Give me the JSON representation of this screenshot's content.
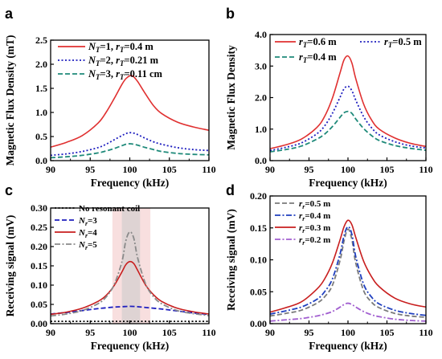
{
  "chart_data": [
    {
      "id": "a",
      "type": "line",
      "panel_label": "a",
      "xlabel": "Frequency (kHz)",
      "ylabel": "Magnetic Flux Density (mT)",
      "xlim": [
        90,
        110
      ],
      "ylim": [
        0,
        2.5
      ],
      "xticks": [
        90,
        95,
        100,
        105,
        110
      ],
      "yticks": [
        0,
        0.5,
        1.0,
        1.5,
        2.0,
        2.5
      ],
      "ytick_labels": [
        "0.0",
        "0.5",
        "1.0",
        "1.5",
        "2.0",
        "2.5"
      ],
      "legend_position": "top-left",
      "grid": false,
      "series": [
        {
          "name": "N_T=1, r_T=0.4 m",
          "label_main": "N",
          "label_sub1": "T",
          "label_mid": "=1, ",
          "label_main2": "r",
          "label_sub2": "T",
          "label_end": "=0.4 m",
          "color": "#e03030",
          "dash": "solid",
          "x": [
            90,
            92,
            94,
            96,
            97,
            98,
            99,
            99.5,
            100,
            100.3,
            100.5,
            101,
            102,
            103,
            104,
            106,
            108,
            110
          ],
          "y": [
            0.28,
            0.38,
            0.52,
            0.78,
            1.0,
            1.28,
            1.58,
            1.7,
            1.76,
            1.76,
            1.74,
            1.64,
            1.38,
            1.14,
            0.98,
            0.8,
            0.7,
            0.63
          ]
        },
        {
          "name": "N_T=2, r_T=0.21 m",
          "label_main": "N",
          "label_sub1": "T",
          "label_mid": "=2, ",
          "label_main2": "r",
          "label_sub2": "T",
          "label_end": "=0.21 m",
          "color": "#1f1fbf",
          "dash": "dot",
          "x": [
            90,
            92,
            94,
            96,
            97,
            98,
            99,
            99.5,
            100,
            100.5,
            101,
            102,
            103,
            104,
            106,
            108,
            110
          ],
          "y": [
            0.11,
            0.14,
            0.19,
            0.27,
            0.34,
            0.43,
            0.52,
            0.56,
            0.58,
            0.57,
            0.54,
            0.46,
            0.39,
            0.34,
            0.27,
            0.23,
            0.21
          ]
        },
        {
          "name": "N_T=3, r_T=0.11 cm",
          "label_main": "N",
          "label_sub1": "T",
          "label_mid": "=3, ",
          "label_main2": "r",
          "label_sub2": "T",
          "label_end": "=0.11 cm",
          "color": "#1f8a7a",
          "dash": "dash",
          "x": [
            90,
            92,
            94,
            96,
            97,
            98,
            99,
            99.5,
            100,
            100.5,
            101,
            102,
            103,
            104,
            106,
            108,
            110
          ],
          "y": [
            0.06,
            0.08,
            0.11,
            0.16,
            0.2,
            0.25,
            0.31,
            0.34,
            0.35,
            0.34,
            0.32,
            0.27,
            0.23,
            0.19,
            0.15,
            0.13,
            0.12
          ]
        }
      ]
    },
    {
      "id": "b",
      "type": "line",
      "panel_label": "b",
      "xlabel": "Frequency (kHz)",
      "ylabel": "Magnetic Flux Density",
      "xlim": [
        90,
        110
      ],
      "ylim": [
        0,
        4.0
      ],
      "xticks": [
        90,
        95,
        100,
        105,
        110
      ],
      "yticks": [
        0,
        1.0,
        2.0,
        3.0,
        4.0
      ],
      "ytick_labels": [
        "0.0",
        "1.0",
        "2.0",
        "3.0",
        "4.0"
      ],
      "legend_position": "top",
      "grid": false,
      "series": [
        {
          "name": "r_T=0.6 m",
          "label_main": "r",
          "label_sub1": "T",
          "label_end": "=0.6 m",
          "color": "#e03030",
          "dash": "solid",
          "x": [
            90,
            92,
            94,
            96,
            97,
            98,
            99,
            99.5,
            100,
            100.5,
            101,
            102,
            103,
            104,
            106,
            108,
            110
          ],
          "y": [
            0.38,
            0.5,
            0.68,
            1.05,
            1.4,
            1.98,
            2.8,
            3.2,
            3.32,
            3.1,
            2.6,
            1.8,
            1.3,
            1.0,
            0.72,
            0.55,
            0.45
          ]
        },
        {
          "name": "r_T=0.5 m",
          "label_main": "r",
          "label_sub1": "T",
          "label_end": "=0.5 m",
          "color": "#1f1fbf",
          "dash": "dot",
          "x": [
            90,
            92,
            94,
            96,
            97,
            98,
            99,
            99.5,
            100,
            100.5,
            101,
            102,
            103,
            104,
            106,
            108,
            110
          ],
          "y": [
            0.32,
            0.42,
            0.56,
            0.85,
            1.1,
            1.5,
            2.02,
            2.28,
            2.36,
            2.22,
            1.92,
            1.4,
            1.05,
            0.82,
            0.6,
            0.47,
            0.4
          ]
        },
        {
          "name": "r_T=0.4 m",
          "label_main": "r",
          "label_sub1": "T",
          "label_end": "=0.4 m",
          "color": "#1f8a7a",
          "dash": "dash",
          "x": [
            90,
            92,
            94,
            96,
            97,
            98,
            99,
            99.5,
            100,
            100.5,
            101,
            102,
            103,
            104,
            106,
            108,
            110
          ],
          "y": [
            0.28,
            0.35,
            0.46,
            0.68,
            0.84,
            1.08,
            1.38,
            1.52,
            1.56,
            1.5,
            1.32,
            1.02,
            0.8,
            0.64,
            0.48,
            0.39,
            0.33
          ]
        }
      ]
    },
    {
      "id": "c",
      "type": "line",
      "panel_label": "c",
      "xlabel": "Frequency (kHz)",
      "ylabel": "Receiving signal (mV)",
      "xlim": [
        90,
        110
      ],
      "ylim": [
        0,
        0.3
      ],
      "xticks": [
        90,
        95,
        100,
        105,
        110
      ],
      "yticks": [
        0,
        0.05,
        0.1,
        0.15,
        0.2,
        0.25,
        0.3
      ],
      "ytick_labels": [
        "0.00",
        "0.05",
        "0.10",
        "0.15",
        "0.20",
        "0.25",
        "0.30"
      ],
      "legend_position": "top-left",
      "grid": false,
      "shaded_bands": [
        {
          "x0": 97.8,
          "x1": 102.6,
          "color": "#f4c9c9",
          "opacity": 0.6
        },
        {
          "x0": 99.0,
          "x1": 101.3,
          "color": "#c9c9c9",
          "opacity": 0.55
        }
      ],
      "series": [
        {
          "name": "No resonant coil",
          "label_end": "No resonant coil",
          "color": "#000000",
          "dash": "dot",
          "x": [
            90,
            110
          ],
          "y": [
            0.006,
            0.006
          ]
        },
        {
          "name": "N_r=3",
          "label_main": "N",
          "label_sub1": "r",
          "label_end": "=3",
          "color": "#1f1fbf",
          "dash": "dash",
          "x": [
            90,
            92,
            94,
            96,
            98,
            99,
            100,
            101,
            102,
            104,
            106,
            108,
            110
          ],
          "y": [
            0.025,
            0.029,
            0.034,
            0.039,
            0.043,
            0.044,
            0.045,
            0.044,
            0.042,
            0.038,
            0.033,
            0.028,
            0.024
          ]
        },
        {
          "name": "N_r=4",
          "label_main": "N",
          "label_sub1": "r",
          "label_end": "=4",
          "color": "#c81e1e",
          "dash": "solid",
          "x": [
            90,
            92,
            94,
            96,
            97,
            98,
            99,
            99.5,
            100,
            100.5,
            101,
            102,
            103,
            104,
            106,
            108,
            110
          ],
          "y": [
            0.024,
            0.03,
            0.04,
            0.058,
            0.073,
            0.098,
            0.134,
            0.153,
            0.161,
            0.156,
            0.138,
            0.1,
            0.075,
            0.058,
            0.04,
            0.031,
            0.025
          ]
        },
        {
          "name": "N_r=5",
          "label_main": "N",
          "label_sub1": "r",
          "label_end": "=5",
          "color": "#8a8a8a",
          "dash": "dashdot",
          "x": [
            90,
            92,
            94,
            96,
            97,
            98,
            99,
            99.5,
            100,
            100.5,
            101,
            102,
            103,
            104,
            106,
            108,
            110
          ],
          "y": [
            0.02,
            0.025,
            0.034,
            0.052,
            0.069,
            0.1,
            0.16,
            0.215,
            0.238,
            0.222,
            0.17,
            0.103,
            0.07,
            0.052,
            0.034,
            0.026,
            0.021
          ]
        }
      ]
    },
    {
      "id": "d",
      "type": "line",
      "panel_label": "d",
      "xlabel": "Frequency (kHz)",
      "ylabel": "Receiving signal (mV)",
      "xlim": [
        90,
        110
      ],
      "ylim": [
        0,
        0.2
      ],
      "xticks": [
        90,
        95,
        100,
        105,
        110
      ],
      "yticks": [
        0,
        0.05,
        0.1,
        0.15,
        0.2
      ],
      "ytick_labels": [
        "0.00",
        "0.05",
        "0.10",
        "0.15",
        "0.20"
      ],
      "legend_position": "top-left",
      "grid": false,
      "series": [
        {
          "name": "r_r=0.5 m",
          "label_main": "r",
          "label_sub1": "r",
          "label_end": "=0.5 m",
          "color": "#7a7a7a",
          "dash": "dash",
          "x": [
            90,
            92,
            94,
            96,
            97,
            98,
            99,
            99.5,
            100,
            100.5,
            101,
            102,
            103,
            104,
            106,
            108,
            110
          ],
          "y": [
            0.012,
            0.016,
            0.021,
            0.032,
            0.042,
            0.06,
            0.1,
            0.13,
            0.148,
            0.132,
            0.095,
            0.052,
            0.034,
            0.025,
            0.016,
            0.012,
            0.01
          ]
        },
        {
          "name": "r_r=0.4 m",
          "label_main": "r",
          "label_sub1": "r",
          "label_end": "=0.4 m",
          "color": "#1f3fbf",
          "dash": "dashdot",
          "x": [
            90,
            92,
            94,
            96,
            97,
            98,
            99,
            99.5,
            100,
            100.5,
            101,
            102,
            103,
            104,
            106,
            108,
            110
          ],
          "y": [
            0.015,
            0.02,
            0.026,
            0.038,
            0.05,
            0.07,
            0.11,
            0.138,
            0.152,
            0.14,
            0.105,
            0.062,
            0.042,
            0.031,
            0.021,
            0.016,
            0.013
          ]
        },
        {
          "name": "r_r=0.3 m",
          "label_main": "r",
          "label_sub1": "r",
          "label_end": "=0.3 m",
          "color": "#c81e1e",
          "dash": "solid",
          "x": [
            90,
            92,
            94,
            96,
            97,
            98,
            99,
            99.5,
            100,
            100.5,
            101,
            102,
            103,
            104,
            106,
            108,
            110
          ],
          "y": [
            0.018,
            0.025,
            0.034,
            0.054,
            0.07,
            0.095,
            0.132,
            0.152,
            0.162,
            0.155,
            0.135,
            0.098,
            0.074,
            0.058,
            0.04,
            0.031,
            0.026
          ]
        },
        {
          "name": "r_r=0.2 m",
          "label_main": "r",
          "label_sub1": "r",
          "label_end": "=0.2 m",
          "color": "#a25fd0",
          "dash": "dashdot",
          "x": [
            90,
            92,
            94,
            96,
            97,
            98,
            99,
            99.5,
            100,
            100.5,
            101,
            102,
            103,
            104,
            106,
            108,
            110
          ],
          "y": [
            0.004,
            0.006,
            0.008,
            0.012,
            0.015,
            0.019,
            0.026,
            0.03,
            0.032,
            0.03,
            0.026,
            0.019,
            0.014,
            0.011,
            0.007,
            0.005,
            0.004
          ]
        }
      ]
    }
  ]
}
